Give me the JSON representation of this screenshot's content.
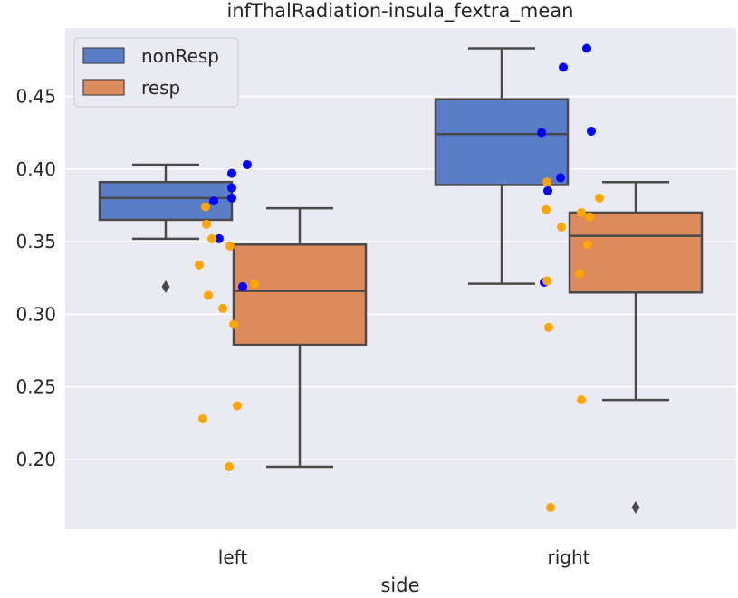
{
  "chart_data": {
    "type": "box",
    "title": "infThalRadiation-insula_fextra_mean",
    "xlabel": "side",
    "ylabel": "",
    "categories": [
      "left",
      "right"
    ],
    "ylim": [
      0.152,
      0.497
    ],
    "yticks": [
      0.2,
      0.25,
      0.3,
      0.35,
      0.4,
      0.45
    ],
    "ytick_labels": [
      "0.20",
      "0.25",
      "0.30",
      "0.35",
      "0.40",
      "0.45"
    ],
    "grid": true,
    "legend_position": "top-left",
    "series": [
      {
        "name": "nonResp",
        "color": "#5a7dc8",
        "point_color": "#0000ff",
        "boxes": [
          {
            "category": "left",
            "whisker_low": 0.352,
            "q1": 0.365,
            "median": 0.38,
            "q3": 0.391,
            "whisker_high": 0.403,
            "outliers": [
              0.319
            ]
          },
          {
            "category": "right",
            "whisker_low": 0.321,
            "q1": 0.389,
            "median": 0.424,
            "q3": 0.448,
            "whisker_high": 0.483,
            "outliers": []
          }
        ],
        "points": [
          {
            "category": "left",
            "values": [
              0.397,
              0.403,
              0.387,
              0.378,
              0.38,
              0.352,
              0.319
            ]
          },
          {
            "category": "right",
            "values": [
              0.483,
              0.47,
              0.426,
              0.425,
              0.394,
              0.385,
              0.322
            ]
          }
        ]
      },
      {
        "name": "resp",
        "color": "#dd8a5c",
        "point_color": "#ffa500",
        "boxes": [
          {
            "category": "left",
            "whisker_low": 0.195,
            "q1": 0.279,
            "median": 0.316,
            "q3": 0.348,
            "whisker_high": 0.373,
            "outliers": []
          },
          {
            "category": "right",
            "whisker_low": 0.241,
            "q1": 0.315,
            "median": 0.354,
            "q3": 0.37,
            "whisker_high": 0.391,
            "outliers": [
              0.167
            ]
          }
        ],
        "points": [
          {
            "category": "left",
            "values": [
              0.374,
              0.362,
              0.352,
              0.347,
              0.334,
              0.321,
              0.313,
              0.304,
              0.293,
              0.237,
              0.228,
              0.195
            ]
          },
          {
            "category": "right",
            "values": [
              0.391,
              0.38,
              0.372,
              0.37,
              0.367,
              0.36,
              0.348,
              0.328,
              0.323,
              0.291,
              0.241,
              0.167
            ]
          }
        ]
      }
    ]
  }
}
